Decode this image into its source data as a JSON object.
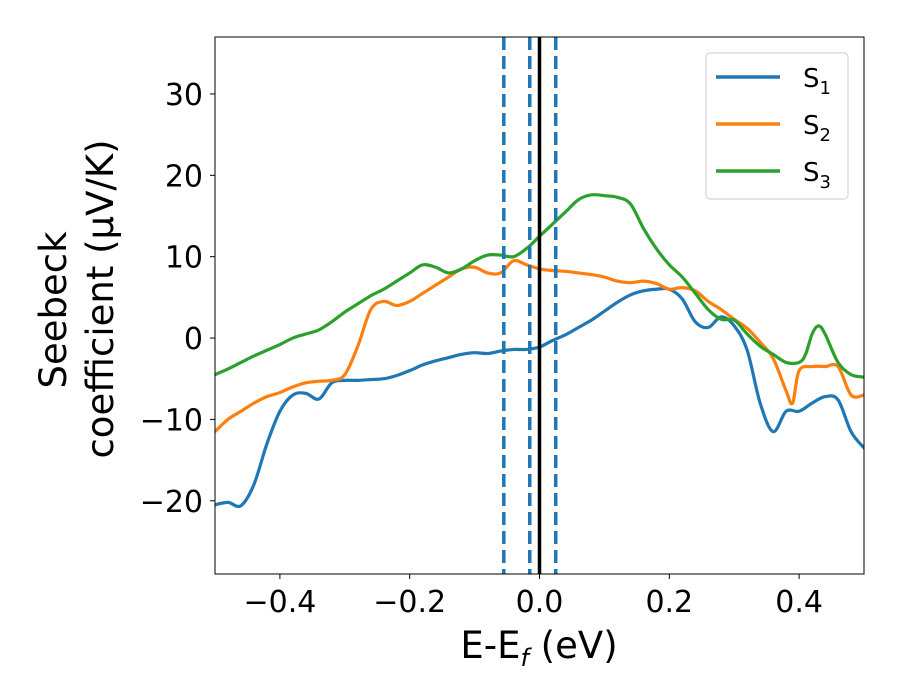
{
  "chart_data": {
    "type": "line",
    "xlabel_main": "E-E",
    "xlabel_sub": "f",
    "xlabel_unit": " (eV)",
    "ylabel_line1": "Seebeck",
    "ylabel_line2": "coefficient  (μV/K)",
    "xlim": [
      -0.5,
      0.5
    ],
    "ylim": [
      -29,
      37
    ],
    "xticks": [
      -0.4,
      -0.2,
      0.0,
      0.2,
      0.4
    ],
    "xtick_labels": [
      "−0.4",
      "−0.2",
      "0.0",
      "0.2",
      "0.4"
    ],
    "yticks": [
      -20,
      -10,
      0,
      10,
      20,
      30
    ],
    "ytick_labels": [
      "−20",
      "−10",
      "0",
      "10",
      "20",
      "30"
    ],
    "grid": false,
    "legend_position": "top-right",
    "vlines": [
      {
        "x": 0.0,
        "color": "#000000",
        "style": "solid"
      },
      {
        "x": -0.055,
        "color": "#1f77b4",
        "style": "dashed"
      },
      {
        "x": -0.015,
        "color": "#1f77b4",
        "style": "dashed"
      },
      {
        "x": 0.025,
        "color": "#1f77b4",
        "style": "dashed"
      }
    ],
    "series": [
      {
        "name": "S",
        "sub": "1",
        "color": "#1f77b4",
        "x": [
          -0.5,
          -0.48,
          -0.46,
          -0.44,
          -0.42,
          -0.4,
          -0.38,
          -0.36,
          -0.34,
          -0.32,
          -0.3,
          -0.28,
          -0.26,
          -0.24,
          -0.22,
          -0.2,
          -0.18,
          -0.16,
          -0.14,
          -0.12,
          -0.1,
          -0.08,
          -0.06,
          -0.04,
          -0.02,
          0.0,
          0.02,
          0.04,
          0.06,
          0.08,
          0.1,
          0.12,
          0.14,
          0.16,
          0.18,
          0.2,
          0.22,
          0.24,
          0.26,
          0.28,
          0.3,
          0.32,
          0.34,
          0.36,
          0.38,
          0.4,
          0.42,
          0.44,
          0.46,
          0.48,
          0.5
        ],
        "y": [
          -20.5,
          -20.2,
          -20.6,
          -18,
          -13,
          -9,
          -7,
          -6.8,
          -7.5,
          -5.5,
          -5.2,
          -5.2,
          -5.1,
          -5,
          -4.6,
          -4,
          -3.3,
          -2.8,
          -2.4,
          -2,
          -1.8,
          -1.9,
          -1.6,
          -1.4,
          -1.4,
          -1.1,
          -0.3,
          0.4,
          1.3,
          2.2,
          3.3,
          4.4,
          5.3,
          5.8,
          6,
          6,
          4.8,
          2,
          1.3,
          2.6,
          1.5,
          -1.5,
          -8,
          -11.5,
          -9,
          -9,
          -8,
          -7.2,
          -7.6,
          -11.5,
          -13.5
        ]
      },
      {
        "name": "S",
        "sub": "2",
        "color": "#ff7f0e",
        "x": [
          -0.5,
          -0.48,
          -0.46,
          -0.44,
          -0.42,
          -0.4,
          -0.38,
          -0.36,
          -0.34,
          -0.32,
          -0.3,
          -0.28,
          -0.26,
          -0.24,
          -0.22,
          -0.2,
          -0.18,
          -0.16,
          -0.14,
          -0.12,
          -0.1,
          -0.08,
          -0.06,
          -0.04,
          -0.02,
          0.0,
          0.02,
          0.04,
          0.06,
          0.08,
          0.1,
          0.12,
          0.14,
          0.16,
          0.18,
          0.2,
          0.22,
          0.24,
          0.26,
          0.28,
          0.3,
          0.32,
          0.34,
          0.36,
          0.38,
          0.39,
          0.4,
          0.42,
          0.44,
          0.46,
          0.48,
          0.5
        ],
        "y": [
          -11.5,
          -10,
          -9,
          -8,
          -7.2,
          -6.7,
          -6,
          -5.5,
          -5.3,
          -5.2,
          -4.5,
          -1,
          3.5,
          4.5,
          4,
          4.5,
          5.5,
          6.5,
          7.5,
          8.5,
          8.7,
          8,
          8,
          9.5,
          9,
          8.5,
          8.3,
          8.2,
          8,
          7.8,
          7.5,
          7,
          6.8,
          7,
          6.7,
          6,
          6.2,
          5.8,
          4.5,
          3.5,
          2.3,
          1.2,
          -0.5,
          -2.5,
          -6.5,
          -8,
          -4,
          -3.5,
          -3.5,
          -3.5,
          -7,
          -7
        ]
      },
      {
        "name": "S",
        "sub": "3",
        "color": "#2ca02c",
        "x": [
          -0.5,
          -0.48,
          -0.46,
          -0.44,
          -0.42,
          -0.4,
          -0.38,
          -0.36,
          -0.34,
          -0.32,
          -0.3,
          -0.28,
          -0.26,
          -0.24,
          -0.22,
          -0.2,
          -0.18,
          -0.16,
          -0.14,
          -0.12,
          -0.1,
          -0.08,
          -0.06,
          -0.04,
          -0.02,
          0.0,
          0.02,
          0.04,
          0.06,
          0.08,
          0.1,
          0.12,
          0.14,
          0.16,
          0.18,
          0.2,
          0.22,
          0.24,
          0.26,
          0.28,
          0.3,
          0.32,
          0.34,
          0.36,
          0.38,
          0.4,
          0.41,
          0.42,
          0.43,
          0.44,
          0.46,
          0.48,
          0.5
        ],
        "y": [
          -4.5,
          -3.8,
          -3,
          -2.2,
          -1.5,
          -0.8,
          0,
          0.5,
          1,
          2,
          3.2,
          4.2,
          5.2,
          6,
          7,
          8,
          9,
          8.7,
          8,
          8.5,
          9.5,
          10.2,
          10.2,
          10,
          11,
          12.5,
          14,
          15.5,
          17,
          17.6,
          17.5,
          17.3,
          16.5,
          13.5,
          11,
          9,
          7.5,
          5.5,
          3.5,
          2.3,
          2.2,
          0.5,
          -1,
          -2,
          -3,
          -3,
          -2,
          0.5,
          1.5,
          0.5,
          -3,
          -4.5,
          -4.8
        ]
      }
    ]
  }
}
